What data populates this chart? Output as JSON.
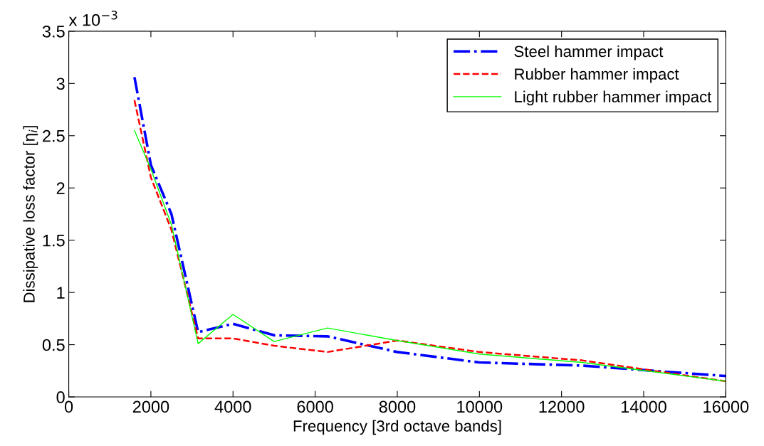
{
  "chart_data": {
    "type": "line",
    "xlabel": "Frequency [3rd octave bands]",
    "ylabel": "Dissipative loss factor [η$_{i}$]",
    "annotations": [
      "x 10$^{−3}$"
    ],
    "x": [
      1600,
      2000,
      2500,
      3150,
      4000,
      5000,
      6300,
      8000,
      10000,
      12500,
      16000
    ],
    "series": [
      {
        "name": "Steel hammer impact",
        "color": "#0000ff",
        "line_style": "dashdot",
        "values": [
          3.06,
          2.22,
          1.75,
          0.62,
          0.7,
          0.59,
          0.58,
          0.43,
          0.33,
          0.3,
          0.2
        ]
      },
      {
        "name": "Rubber hammer impact",
        "color": "#ff0000",
        "line_style": "dashed",
        "values": [
          2.84,
          2.1,
          1.6,
          0.56,
          0.56,
          0.49,
          0.43,
          0.54,
          0.43,
          0.35,
          0.15
        ]
      },
      {
        "name": "Light rubber hammer impact",
        "color": "#00ff00",
        "line_style": "solid",
        "values": [
          2.55,
          2.18,
          1.65,
          0.51,
          0.79,
          0.53,
          0.66,
          0.54,
          0.41,
          0.33,
          0.15
        ]
      }
    ],
    "xlim": [
      0,
      16000
    ],
    "xticks": [
      0,
      2000,
      4000,
      6000,
      8000,
      10000,
      12000,
      14000,
      16000
    ],
    "ylim": [
      0,
      3.5
    ],
    "yticks": [
      0,
      0.5,
      1,
      1.5,
      2,
      2.5,
      3,
      3.5
    ],
    "grid": false,
    "legend": "top right",
    "marker": "none"
  }
}
